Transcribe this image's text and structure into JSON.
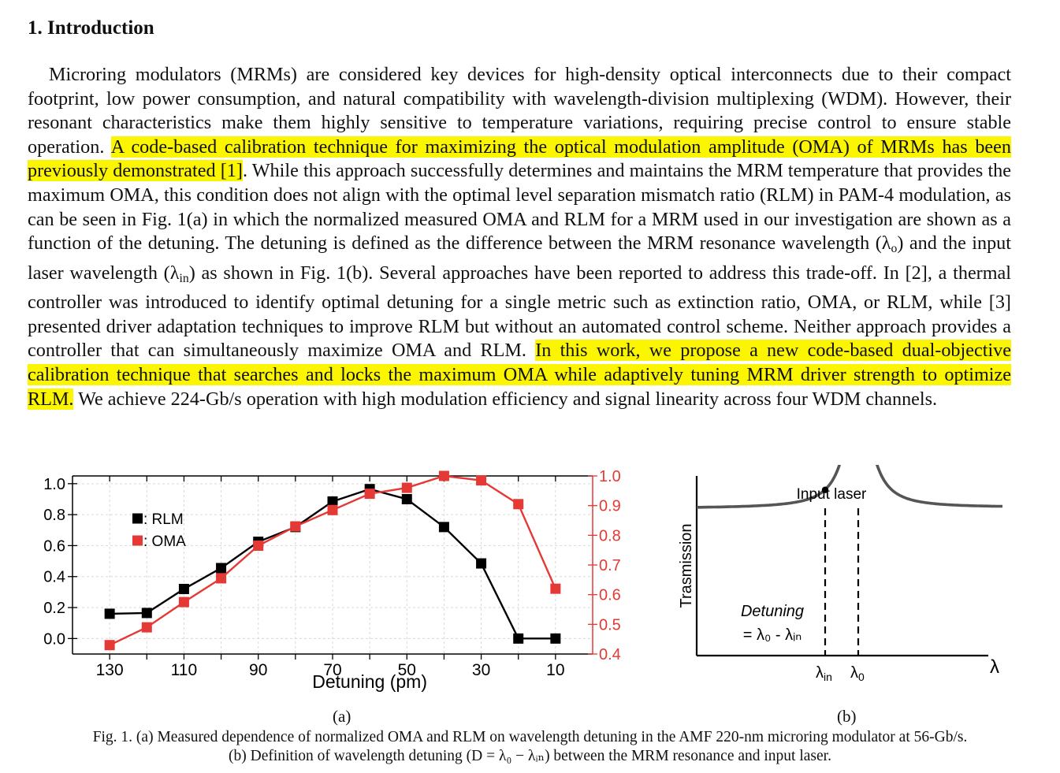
{
  "section": {
    "number": "1.",
    "title": "Introduction"
  },
  "paragraph": [
    {
      "text": "Microring modulators (MRMs) are considered key devices for high-density optical interconnects due to their compact footprint, low power consumption, and natural compatibility with wavelength-division multiplexing (WDM). However, their resonant characteristics make them highly sensitive to temperature variations, requiring precise control to ensure stable operation. ",
      "hl": false
    },
    {
      "text": "A code-based calibration technique for maximizing the optical modulation amplitude (OMA) of MRMs has been previously demonstrated [1]",
      "hl": true
    },
    {
      "text": ". While this approach successfully determines and maintains the MRM temperature that provides the maximum OMA, this condition does not align with the optimal level separation mismatch ratio (RLM) in PAM-4 modulation, as can be seen in Fig. 1(a) in which the normalized measured OMA and RLM for a MRM used in our investigation are shown as a function of the detuning. The detuning is defined as the difference between the MRM resonance wavelength (λ",
      "hl": false
    },
    {
      "text": "o",
      "sub": true
    },
    {
      "text": ") and the input laser wavelength (λ",
      "hl": false
    },
    {
      "text": "in",
      "sub": true
    },
    {
      "text": ") as shown in Fig. 1(b). Several approaches have been reported to address this trade-off. In [2], a thermal controller was introduced to identify optimal detuning for a single metric such as extinction ratio, OMA, or RLM, while [3] presented driver adaptation techniques to improve RLM but without an automated control scheme. Neither approach provides a controller that can simultaneously maximize OMA and RLM. ",
      "hl": false
    },
    {
      "text": "In this work, we propose a new code-based dual-objective calibration technique that searches and locks the maximum OMA while adaptively tuning MRM driver strength to optimize RLM.",
      "hl": true
    },
    {
      "text": " We achieve 224-Gb/s operation with high modulation efficiency and signal linearity across four WDM channels.",
      "hl": false
    }
  ],
  "chart_data": [
    {
      "type": "line",
      "xlabel": "Detuning (pm)",
      "x_ticks": [
        "130",
        "110",
        "90",
        "70",
        "50",
        "30",
        "10"
      ],
      "xlim": [
        140,
        0
      ],
      "x": [
        130,
        120,
        110,
        100,
        90,
        80,
        70,
        60,
        50,
        40,
        30,
        20,
        10
      ],
      "y_left": {
        "ticks": [
          "0.0",
          "0.2",
          "0.4",
          "0.6",
          "0.8",
          "1.0"
        ],
        "lim": [
          -0.1,
          1.05
        ]
      },
      "y_right": {
        "ticks": [
          "0.4",
          "0.5",
          "0.6",
          "0.7",
          "0.8",
          "0.9",
          "1.0"
        ],
        "lim": [
          0.4,
          1.0
        ],
        "color": "#e53935"
      },
      "grid": true,
      "legend": "top-left",
      "series": [
        {
          "name": ": RLM",
          "axis": "left",
          "color": "#000000",
          "values": [
            0.16,
            0.165,
            0.32,
            0.455,
            0.625,
            0.72,
            0.885,
            0.965,
            0.9,
            0.72,
            0.485,
            0.0,
            0.0
          ]
        },
        {
          "name": ": OMA",
          "axis": "right",
          "color": "#e53935",
          "values": [
            0.43,
            0.49,
            0.575,
            0.655,
            0.765,
            0.83,
            0.885,
            0.94,
            0.96,
            1.0,
            0.985,
            0.905,
            0.62
          ]
        }
      ]
    },
    {
      "type": "line",
      "ylabel": "Trasmission",
      "x_axis_symbol": "λ",
      "annotation_title": "Input laser",
      "detuning_label": "Detuning",
      "detuning_eq": "= λ₀ - λᵢₙ",
      "marker_in": "λin",
      "marker_o": "λ0"
    }
  ],
  "panel_labels": {
    "a": "(a)",
    "b": "(b)"
  },
  "caption": {
    "line1": "Fig. 1. (a) Measured dependence of normalized OMA and RLM on wavelength detuning in the AMF 220-nm microring modulator at 56-Gb/s.",
    "line2": "(b) Definition of wavelength detuning (D = λ₀ − λᵢₙ) between the MRM resonance and input laser."
  }
}
